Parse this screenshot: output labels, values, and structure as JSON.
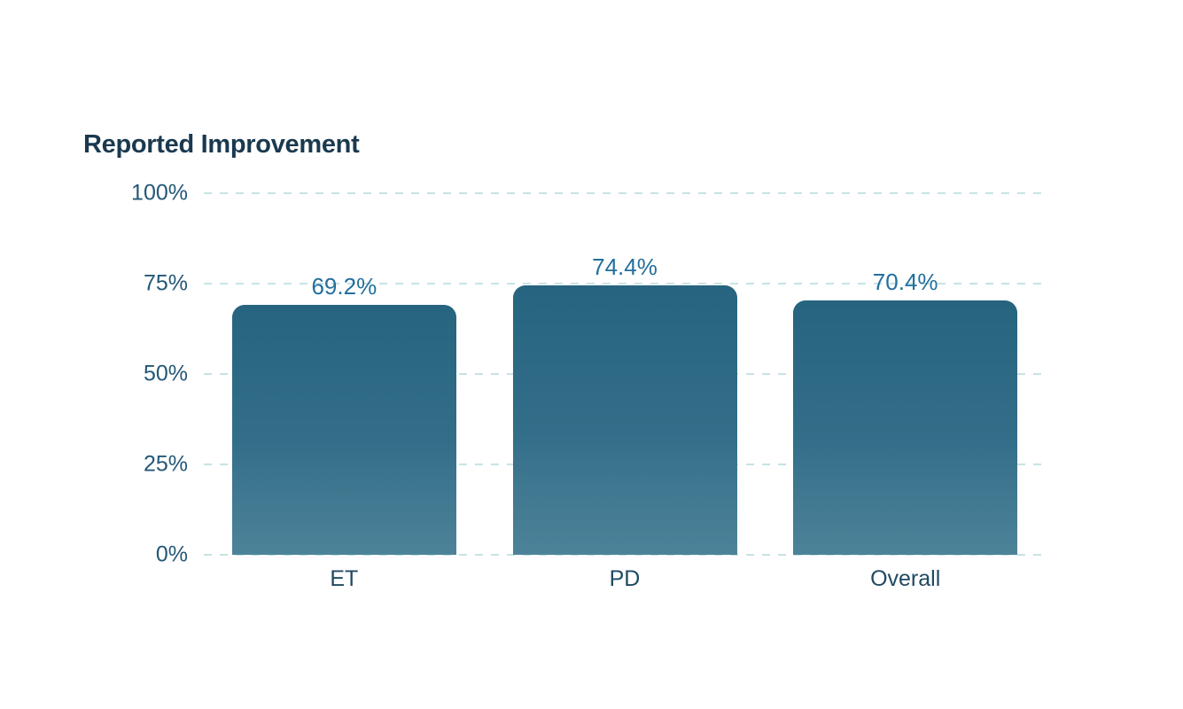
{
  "chart_data": {
    "type": "bar",
    "title": "Reported Improvement",
    "categories": [
      "ET",
      "PD",
      "Overall"
    ],
    "values": [
      69.2,
      74.4,
      70.4
    ],
    "value_labels": [
      "69.2%",
      "74.4%",
      "70.4%"
    ],
    "xlabel": "",
    "ylabel": "",
    "ylim": [
      0,
      100
    ],
    "yticks": [
      0,
      25,
      50,
      75,
      100
    ],
    "ytick_labels": [
      "0%",
      "25%",
      "50%",
      "75%",
      "100%"
    ],
    "grid": "horizontal-dashed",
    "legend": "none",
    "colors": {
      "background": "#ffffff",
      "title_text": "#1a394f",
      "tick_text": "#245877",
      "category_text": "#204a62",
      "value_text": "#236f9d",
      "gridline": "#c7e3e5",
      "bar_gradient_top": "#26647f",
      "bar_gradient_bottom": "#4d8399"
    }
  }
}
